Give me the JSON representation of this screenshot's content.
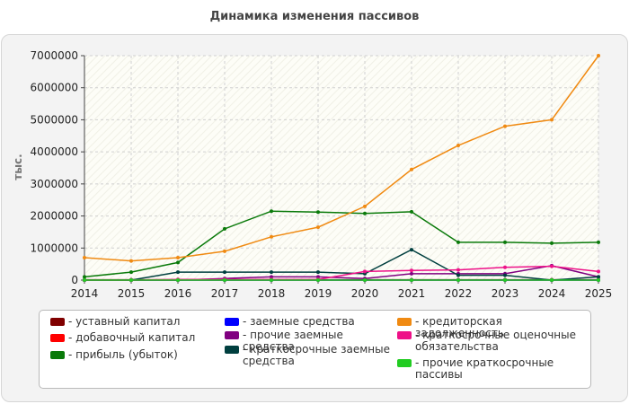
{
  "chart_data": {
    "type": "line",
    "title": "Динамика изменения пассивов",
    "ylabel": "тыс.",
    "xlabel": "",
    "x": [
      "2014",
      "2015",
      "2016",
      "2017",
      "2018",
      "2019",
      "2020",
      "2021",
      "2022",
      "2023",
      "2024",
      "2025"
    ],
    "ylim": [
      0,
      7000000
    ],
    "yticks": [
      "0",
      "1000000",
      "2000000",
      "3000000",
      "4000000",
      "5000000",
      "6000000",
      "7000000"
    ],
    "grid": true,
    "legend_position": "bottom",
    "series": [
      {
        "name": "- уставный капитал",
        "color": "#800000",
        "values": [
          10000,
          10000,
          10000,
          10000,
          10000,
          10000,
          10000,
          10000,
          10000,
          10000,
          10000,
          10000
        ]
      },
      {
        "name": "- добавочный капитал",
        "color": "#ff0000",
        "values": [
          0,
          0,
          0,
          0,
          0,
          0,
          0,
          0,
          0,
          0,
          0,
          0
        ]
      },
      {
        "name": "- прибыль (убыток)",
        "color": "#0a7a0a",
        "values": [
          100000,
          250000,
          550000,
          1600000,
          2150000,
          2120000,
          2080000,
          2130000,
          1180000,
          1180000,
          1150000,
          1180000
        ]
      },
      {
        "name": "- заемные средства",
        "color": "#0000ff",
        "values": [
          0,
          0,
          0,
          0,
          0,
          0,
          0,
          0,
          0,
          0,
          0,
          0
        ]
      },
      {
        "name": "- прочие заемные средства",
        "color": "#800080",
        "values": [
          0,
          0,
          0,
          50000,
          100000,
          100000,
          50000,
          200000,
          200000,
          200000,
          450000,
          100000
        ]
      },
      {
        "name": "- краткосрочные заемные средства",
        "color": "#003f3f",
        "values": [
          0,
          0,
          250000,
          250000,
          250000,
          250000,
          200000,
          950000,
          150000,
          150000,
          0,
          100000
        ]
      },
      {
        "name": "- кредиторская задолженность",
        "color": "#f08a12",
        "values": [
          700000,
          600000,
          700000,
          900000,
          1350000,
          1650000,
          2300000,
          3450000,
          4200000,
          4800000,
          5000000,
          7000000
        ]
      },
      {
        "name": "- краткосрочные оценочные обязательства",
        "color": "#ee1188",
        "values": [
          0,
          0,
          20000,
          20000,
          20000,
          20000,
          270000,
          300000,
          320000,
          400000,
          430000,
          270000
        ]
      },
      {
        "name": "- прочие краткосрочные пассивы",
        "color": "#22cc22",
        "values": [
          0,
          0,
          0,
          0,
          0,
          0,
          0,
          0,
          0,
          0,
          0,
          0
        ]
      }
    ]
  }
}
